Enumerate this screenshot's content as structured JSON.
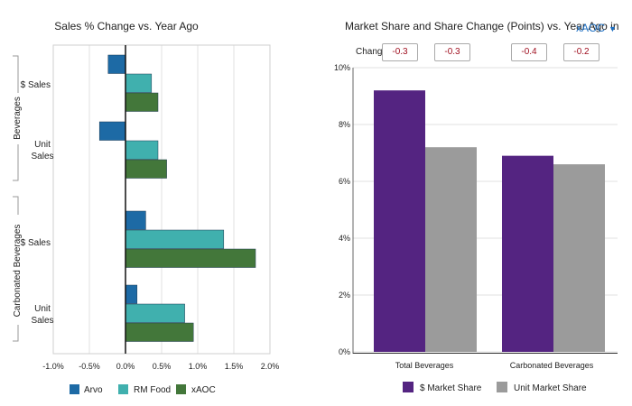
{
  "left_chart": {
    "chart_data": {
      "type": "bar",
      "orientation": "horizontal",
      "title": "Sales % Change vs. Year Ago",
      "groups": [
        {
          "name": "Beverages",
          "rows": [
            {
              "label": "$ Sales",
              "values": {
                "Arvo": -0.24,
                "RM Food": 0.36,
                "xAOC": 0.45
              }
            },
            {
              "label": "Unit Sales",
              "values": {
                "Arvo": -0.36,
                "RM Food": 0.45,
                "xAOC": 0.57
              }
            }
          ]
        },
        {
          "name": "Carbonated Beverages",
          "rows": [
            {
              "label": "$ Sales",
              "values": {
                "Arvo": 0.28,
                "RM Food": 1.36,
                "xAOC": 1.8
              }
            },
            {
              "label": "Unit Sales",
              "values": {
                "Arvo": 0.16,
                "RM Food": 0.82,
                "xAOC": 0.94
              }
            }
          ]
        }
      ],
      "series": [
        {
          "name": "Arvo",
          "color": "#1d6aa5"
        },
        {
          "name": "RM Food",
          "color": "#40b0ae"
        },
        {
          "name": "xAOC",
          "color": "#43773a"
        }
      ],
      "xlim": [
        -1.0,
        2.0
      ],
      "xticks": [
        "-1.0%",
        "-0.5%",
        "0.0%",
        "0.5%",
        "1.0%",
        "1.5%",
        "2.0%"
      ],
      "grid": true,
      "legend_position": "bottom"
    }
  },
  "right_chart": {
    "title": "Market Share and Share Change (Points) vs. Year Ago in",
    "dropdown_value": "xAOC",
    "change_label": "Change",
    "changes": [
      "-0.3",
      "-0.3",
      "-0.4",
      "-0.2"
    ],
    "chart_data": {
      "type": "bar",
      "categories": [
        "Total Beverages",
        "Carbonated Beverages"
      ],
      "series": [
        {
          "name": "$ Market Share",
          "color": "#542481",
          "values": [
            9.2,
            6.9
          ]
        },
        {
          "name": "Unit Market Share",
          "color": "#9b9b9b",
          "values": [
            7.2,
            6.6
          ]
        }
      ],
      "ylim": [
        0,
        10
      ],
      "yticks": [
        "0%",
        "2%",
        "4%",
        "6%",
        "8%",
        "10%"
      ],
      "grid": true,
      "legend_position": "bottom"
    }
  }
}
